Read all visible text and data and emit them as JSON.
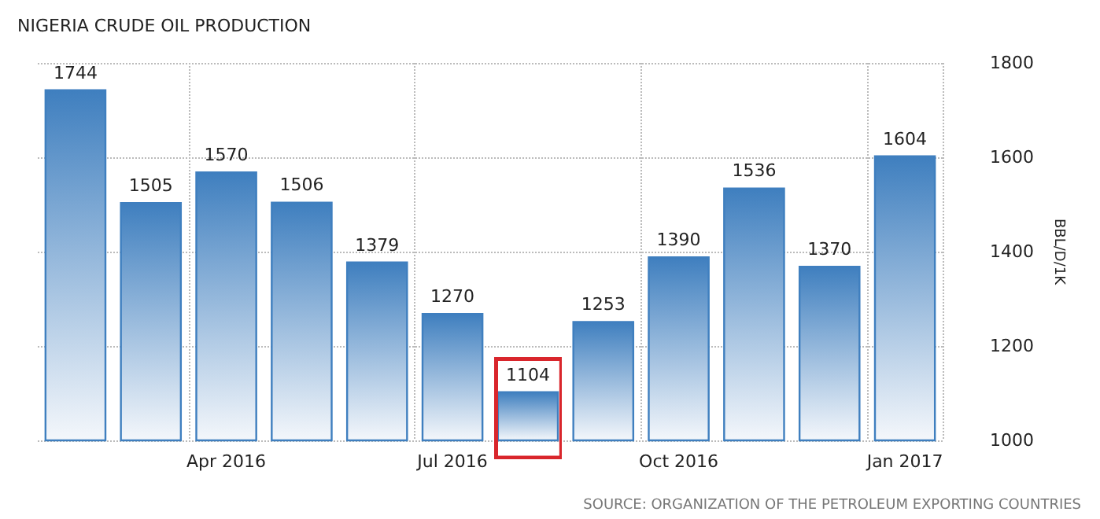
{
  "chart_data": {
    "type": "bar",
    "title": "NIGERIA CRUDE OIL PRODUCTION",
    "ylabel": "BBL/D/1K",
    "categories": [
      null,
      null,
      "Apr 2016",
      null,
      null,
      "Jul 2016",
      null,
      null,
      "Oct 2016",
      null,
      null,
      "Jan 2017"
    ],
    "values": [
      1744,
      1505,
      1570,
      1506,
      1379,
      1270,
      1104,
      1253,
      1390,
      1536,
      1370,
      1604
    ],
    "color": "#3f7fbf",
    "ylim": [
      1000,
      1800
    ],
    "yticks": [
      1000,
      1200,
      1400,
      1600,
      1800
    ],
    "grid": true,
    "data_labels": true,
    "annotations": [
      "SOURCE: ORGANIZATION OF THE PETROLEUM EXPORTING COUNTRIES"
    ]
  }
}
